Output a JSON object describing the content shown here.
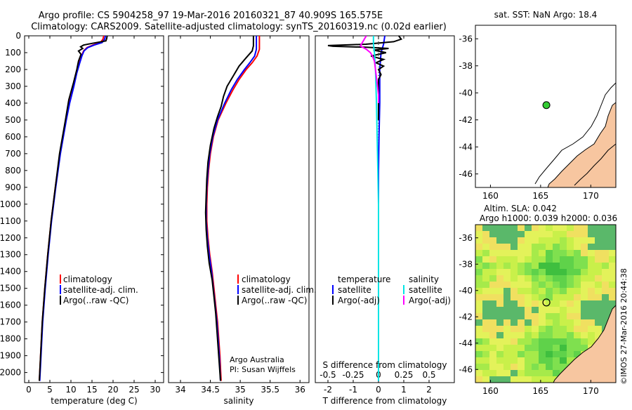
{
  "header": {
    "title_line1": "Argo profile: CS 5904258_97 19-Mar-2016 20160321_87 40.909S 165.575E",
    "title_line2": "Climatology: CARS2009. Satellite-adjusted climatology: synTS_20160319.nc (0.02d earlier)"
  },
  "colors": {
    "climatology": "#ff0000",
    "satellite": "#0000ff",
    "argo": "#000000",
    "salinity_sat": "#00e5e5",
    "salinity_argo": "#ff00ff",
    "land": "#f7c6a0"
  },
  "depth_axis": {
    "ticks": [
      0,
      100,
      200,
      300,
      400,
      500,
      600,
      700,
      800,
      900,
      1000,
      1100,
      1200,
      1300,
      1400,
      1500,
      1600,
      1700,
      1800,
      1900,
      2000
    ]
  },
  "chart_data": [
    {
      "type": "line",
      "name": "temperature-profile",
      "xlabel": "temperature (deg C)",
      "xlim": [
        -1,
        32
      ],
      "ylim": [
        2060,
        0
      ],
      "xticks": [
        0,
        5,
        10,
        15,
        20,
        25,
        30
      ],
      "legend": {
        "items": [
          "climatology",
          "satellite-adj. clim.",
          "Argo(..raw -QC)"
        ],
        "position": "lower-middle"
      },
      "series": [
        {
          "name": "climatology",
          "depth": [
            0,
            20,
            40,
            55,
            70,
            90,
            120,
            160,
            220,
            300,
            400,
            500,
            700,
            900,
            1100,
            1300,
            1500,
            1700,
            1900,
            2050
          ],
          "values": [
            17.8,
            17.6,
            17.0,
            15.2,
            13.8,
            13.0,
            12.5,
            12.0,
            11.3,
            10.6,
            9.6,
            8.8,
            7.4,
            6.3,
            5.3,
            4.5,
            3.8,
            3.2,
            2.8,
            2.5
          ]
        },
        {
          "name": "satellite-adj. clim.",
          "depth": [
            0,
            20,
            40,
            55,
            70,
            90,
            120,
            160,
            220,
            300,
            400,
            500,
            700,
            900,
            1100,
            1300,
            1500,
            1700,
            1900,
            2050
          ],
          "values": [
            18.2,
            18.0,
            17.4,
            15.5,
            14.0,
            13.1,
            12.6,
            12.1,
            11.4,
            10.7,
            9.7,
            8.9,
            7.5,
            6.4,
            5.4,
            4.6,
            3.9,
            3.3,
            2.9,
            2.6
          ]
        },
        {
          "name": "Argo(..raw -QC)",
          "depth": [
            0,
            15,
            30,
            45,
            55,
            65,
            75,
            90,
            110,
            150,
            200,
            280,
            380,
            500,
            700,
            900,
            1100,
            1300,
            1500,
            1700,
            1900,
            2050
          ],
          "values": [
            18.6,
            18.5,
            18.3,
            15.0,
            13.0,
            12.3,
            12.8,
            11.8,
            12.4,
            11.8,
            11.4,
            10.6,
            9.5,
            8.7,
            7.3,
            6.3,
            5.3,
            4.5,
            3.8,
            3.2,
            2.8,
            2.5
          ]
        }
      ]
    },
    {
      "type": "line",
      "name": "salinity-profile",
      "xlabel": "salinity",
      "xlim": [
        33.8,
        36.15
      ],
      "ylim": [
        2060,
        0
      ],
      "xticks": [
        34,
        34.5,
        35,
        35.5,
        36
      ],
      "legend": {
        "items": [
          "climatology",
          "satellite-adj. clim.",
          "Argo(..raw -QC)"
        ],
        "position": "lower-right"
      },
      "annotation": [
        "Argo Australia",
        "PI: Susan Wijffels"
      ],
      "series": [
        {
          "name": "climatology",
          "depth": [
            0,
            40,
            80,
            120,
            160,
            200,
            260,
            320,
            400,
            500,
            600,
            700,
            800,
            900,
            1000,
            1100,
            1200,
            1300,
            1400,
            1500,
            1600,
            1700,
            1800,
            1900,
            2050
          ],
          "values": [
            35.32,
            35.32,
            35.32,
            35.28,
            35.2,
            35.1,
            34.98,
            34.88,
            34.76,
            34.63,
            34.55,
            34.5,
            34.47,
            34.45,
            34.44,
            34.44,
            34.46,
            34.49,
            34.53,
            34.56,
            34.59,
            34.62,
            34.64,
            34.66,
            34.68
          ]
        },
        {
          "name": "satellite-adj. clim.",
          "depth": [
            0,
            40,
            80,
            120,
            160,
            200,
            260,
            320,
            400,
            500,
            600,
            700,
            800,
            900,
            1000,
            1100,
            1200,
            1300,
            1400,
            1500,
            1600,
            1700,
            1800,
            1900,
            2050
          ],
          "values": [
            35.27,
            35.27,
            35.27,
            35.24,
            35.16,
            35.07,
            34.95,
            34.85,
            34.74,
            34.62,
            34.54,
            34.49,
            34.46,
            34.44,
            34.43,
            34.43,
            34.45,
            34.48,
            34.52,
            34.55,
            34.58,
            34.61,
            34.63,
            34.65,
            34.67
          ]
        },
        {
          "name": "Argo(..raw -QC)",
          "depth": [
            0,
            30,
            60,
            90,
            130,
            180,
            240,
            300,
            360,
            420,
            480,
            550,
            650,
            750,
            850,
            950,
            1050,
            1150,
            1250,
            1350,
            1450,
            1550,
            1650,
            1750,
            1850,
            1950,
            2050
          ],
          "values": [
            35.22,
            35.22,
            35.22,
            35.2,
            35.1,
            34.98,
            34.88,
            34.78,
            34.72,
            34.68,
            34.62,
            34.56,
            34.5,
            34.46,
            34.44,
            34.43,
            34.42,
            34.43,
            34.45,
            34.48,
            34.53,
            34.56,
            34.59,
            34.61,
            34.63,
            34.65,
            34.67
          ]
        }
      ]
    },
    {
      "type": "line",
      "name": "difference-profile",
      "xlabel": "T difference from climatology",
      "xlabel_top": "S difference from climatology",
      "xlim": [
        -2.5,
        3
      ],
      "ylim": [
        2060,
        0
      ],
      "xticks": [
        -2,
        -1,
        0,
        1,
        2
      ],
      "xticks_top": [
        -0.5,
        -0.25,
        0,
        0.25,
        0.5
      ],
      "legend_temperature": {
        "header": "temperature",
        "items": [
          "satellite",
          "Argo(-adj)"
        ]
      },
      "legend_salinity": {
        "header": "salinity",
        "items": [
          "satellite",
          "Argo(-adj)"
        ]
      },
      "series": [
        {
          "name": "T satellite",
          "depth": [
            0,
            50,
            100,
            200,
            400,
            600,
            800,
            1000,
            1500,
            2050
          ],
          "values": [
            0.25,
            0.2,
            0.1,
            0.05,
            0.05,
            0.02,
            0.0,
            0.0,
            0.0,
            0.0
          ]
        },
        {
          "name": "T Argo(-adj)",
          "depth": [
            0,
            20,
            35,
            50,
            58,
            62,
            68,
            75,
            85,
            100,
            120,
            140,
            160,
            180,
            200,
            230,
            260,
            300,
            350,
            400,
            500
          ],
          "values": [
            0.8,
            0.9,
            0.6,
            -0.5,
            -2.0,
            -1.8,
            -0.5,
            0.4,
            -0.2,
            0.3,
            -0.3,
            0.2,
            -0.1,
            0.2,
            0.0,
            0.1,
            0.0,
            0.0,
            0.0,
            0.0,
            0.0
          ]
        },
        {
          "name": "S satellite",
          "depth": [
            0,
            50,
            100,
            200,
            400,
            700,
            1000,
            1500,
            2050
          ],
          "values": [
            -0.05,
            -0.05,
            -0.04,
            -0.03,
            -0.02,
            -0.01,
            0.0,
            0.0,
            0.0
          ]
        },
        {
          "name": "S Argo(-adj)",
          "depth": [
            0,
            20,
            40,
            60,
            80,
            100,
            120,
            150,
            200,
            250,
            300,
            350,
            400
          ],
          "values": [
            -0.12,
            -0.14,
            -0.16,
            -0.18,
            -0.12,
            -0.08,
            -0.06,
            -0.04,
            -0.03,
            -0.02,
            -0.01,
            0.0,
            0.0
          ]
        }
      ]
    },
    {
      "type": "scatter",
      "name": "sst-map",
      "title": "sat. SST: NaN Argo: 18.4",
      "xlim": [
        158.5,
        172.5
      ],
      "ylim": [
        -47,
        -35
      ],
      "xticks": [
        160,
        165,
        170
      ],
      "yticks": [
        -36,
        -38,
        -40,
        -42,
        -44,
        -46
      ],
      "points": [
        {
          "lon": 165.575,
          "lat": -40.909
        }
      ]
    },
    {
      "type": "heatmap",
      "name": "sla-map",
      "title_line1": "Altim. SLA: 0.042",
      "title_line2": "Argo h1000: 0.039 h2000: 0.036",
      "xlim": [
        158.5,
        172.5
      ],
      "ylim": [
        -47,
        -35
      ],
      "xticks": [
        160,
        165,
        170
      ],
      "yticks": [
        -36,
        -38,
        -40,
        -42,
        -44,
        -46
      ],
      "points": [
        {
          "lon": 165.575,
          "lat": -40.909
        }
      ]
    }
  ],
  "side_caption": "©IMOS 27-Mar-2016 20:44:38"
}
